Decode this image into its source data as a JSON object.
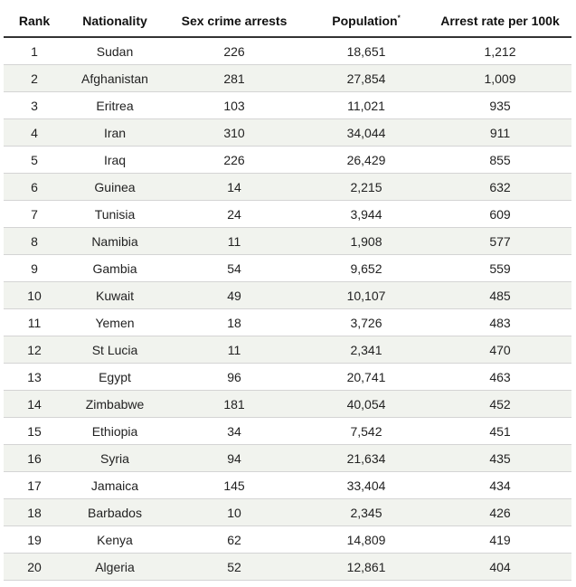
{
  "chart_data": {
    "type": "table",
    "columns": [
      "Rank",
      "Nationality",
      "Sex crime arrests",
      "Population",
      "Arrest rate per 100k"
    ],
    "population_footnote_mark": "*",
    "rows": [
      {
        "rank": "1",
        "nationality": "Sudan",
        "arrests": "226",
        "population": "18,651",
        "rate": "1,212"
      },
      {
        "rank": "2",
        "nationality": "Afghanistan",
        "arrests": "281",
        "population": "27,854",
        "rate": "1,009"
      },
      {
        "rank": "3",
        "nationality": "Eritrea",
        "arrests": "103",
        "population": "11,021",
        "rate": "935"
      },
      {
        "rank": "4",
        "nationality": "Iran",
        "arrests": "310",
        "population": "34,044",
        "rate": "911"
      },
      {
        "rank": "5",
        "nationality": "Iraq",
        "arrests": "226",
        "population": "26,429",
        "rate": "855"
      },
      {
        "rank": "6",
        "nationality": "Guinea",
        "arrests": "14",
        "population": "2,215",
        "rate": "632"
      },
      {
        "rank": "7",
        "nationality": "Tunisia",
        "arrests": "24",
        "population": "3,944",
        "rate": "609"
      },
      {
        "rank": "8",
        "nationality": "Namibia",
        "arrests": "11",
        "population": "1,908",
        "rate": "577"
      },
      {
        "rank": "9",
        "nationality": "Gambia",
        "arrests": "54",
        "population": "9,652",
        "rate": "559"
      },
      {
        "rank": "10",
        "nationality": "Kuwait",
        "arrests": "49",
        "population": "10,107",
        "rate": "485"
      },
      {
        "rank": "11",
        "nationality": "Yemen",
        "arrests": "18",
        "population": "3,726",
        "rate": "483"
      },
      {
        "rank": "12",
        "nationality": "St Lucia",
        "arrests": "11",
        "population": "2,341",
        "rate": "470"
      },
      {
        "rank": "13",
        "nationality": "Egypt",
        "arrests": "96",
        "population": "20,741",
        "rate": "463"
      },
      {
        "rank": "14",
        "nationality": "Zimbabwe",
        "arrests": "181",
        "population": "40,054",
        "rate": "452"
      },
      {
        "rank": "15",
        "nationality": "Ethiopia",
        "arrests": "34",
        "population": "7,542",
        "rate": "451"
      },
      {
        "rank": "16",
        "nationality": "Syria",
        "arrests": "94",
        "population": "21,634",
        "rate": "435"
      },
      {
        "rank": "17",
        "nationality": "Jamaica",
        "arrests": "145",
        "population": "33,404",
        "rate": "434"
      },
      {
        "rank": "18",
        "nationality": "Barbados",
        "arrests": "10",
        "population": "2,345",
        "rate": "426"
      },
      {
        "rank": "19",
        "nationality": "Kenya",
        "arrests": "62",
        "population": "14,809",
        "rate": "419"
      },
      {
        "rank": "20",
        "nationality": "Algeria",
        "arrests": "52",
        "population": "12,861",
        "rate": "404"
      }
    ]
  }
}
